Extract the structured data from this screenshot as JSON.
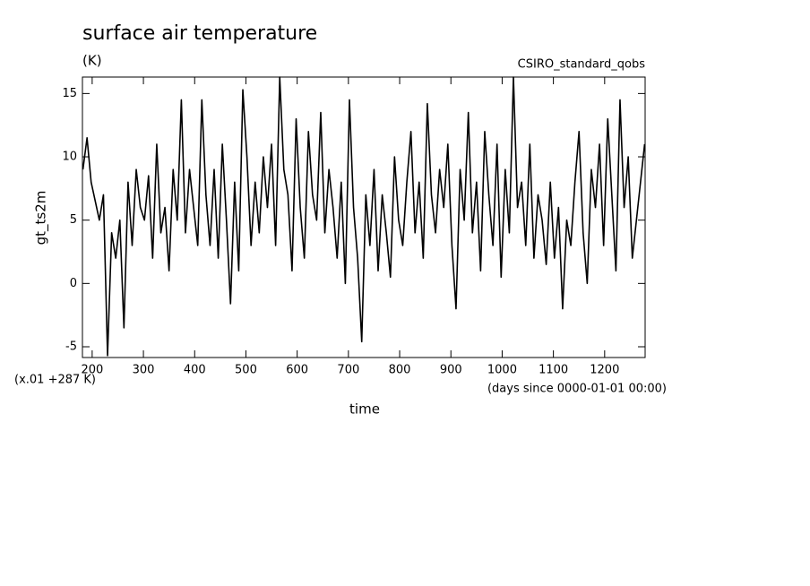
{
  "chart_data": {
    "type": "line",
    "title": "surface air temperature",
    "subtitle": "(K)",
    "dataset": "CSIRO_standard_qobs",
    "y_label": "gt_ts2m",
    "x_label": "time",
    "y_scale_note": "(x.01 +287 K)",
    "x_units": "(days since 0000-01-01 00:00)",
    "xlim": [
      181,
      1279
    ],
    "ylim": [
      -5.85,
      16.3
    ],
    "xticks": [
      200,
      300,
      400,
      500,
      600,
      700,
      800,
      900,
      1000,
      1100,
      1200
    ],
    "yticks": [
      -5,
      0,
      5,
      10,
      15
    ],
    "grid": false,
    "x": [
      182,
      190,
      198,
      206,
      214,
      222,
      230,
      238,
      246,
      254,
      262,
      270,
      278,
      286,
      294,
      302,
      310,
      318,
      326,
      334,
      342,
      350,
      358,
      366,
      374,
      382,
      390,
      398,
      406,
      414,
      422,
      430,
      438,
      446,
      454,
      462,
      470,
      478,
      486,
      494,
      502,
      510,
      518,
      526,
      534,
      542,
      550,
      558,
      566,
      574,
      582,
      590,
      598,
      606,
      614,
      622,
      630,
      638,
      646,
      654,
      662,
      670,
      678,
      686,
      694,
      702,
      710,
      718,
      726,
      734,
      742,
      750,
      758,
      766,
      774,
      782,
      790,
      798,
      806,
      814,
      822,
      830,
      838,
      846,
      854,
      862,
      870,
      878,
      886,
      894,
      902,
      910,
      918,
      926,
      934,
      942,
      950,
      958,
      966,
      974,
      982,
      990,
      998,
      1006,
      1014,
      1022,
      1030,
      1038,
      1046,
      1054,
      1062,
      1070,
      1078,
      1086,
      1094,
      1102,
      1110,
      1118,
      1126,
      1134,
      1142,
      1150,
      1158,
      1166,
      1174,
      1182,
      1190,
      1198,
      1206,
      1214,
      1222,
      1230,
      1238,
      1246,
      1254,
      1262,
      1270,
      1278
    ],
    "series": [
      {
        "color": "#000000",
        "values": [
          9,
          11.5,
          8,
          6.5,
          5,
          7,
          -5.7,
          4,
          2,
          5,
          -3.5,
          8,
          3,
          9,
          6,
          5,
          8.5,
          2,
          11,
          4,
          6,
          1,
          9,
          5,
          14.5,
          4,
          9,
          6,
          3,
          14.5,
          7,
          3,
          9,
          2,
          11,
          5,
          -1.6,
          8,
          1,
          15.3,
          10,
          3,
          8,
          4,
          10,
          6,
          11,
          3,
          16.3,
          9,
          7,
          1,
          13,
          6,
          2,
          12,
          7,
          5,
          13.5,
          4,
          9,
          6,
          2,
          8,
          0,
          14.5,
          6,
          2,
          -4.6,
          7,
          3,
          9,
          1,
          7,
          4,
          0.5,
          10,
          5,
          3,
          8,
          12,
          4,
          8,
          2,
          14.2,
          7,
          4,
          9,
          6,
          11,
          3,
          -2,
          9,
          5,
          13.5,
          4,
          8,
          1,
          12,
          7,
          3,
          11,
          0.5,
          9,
          4,
          16.3,
          6,
          8,
          3,
          11,
          2,
          7,
          5,
          1.5,
          8,
          2,
          6,
          -2,
          5,
          3,
          8,
          12,
          4,
          0,
          9,
          6,
          11,
          3,
          13,
          7,
          1,
          14.5,
          6,
          10,
          2,
          5,
          8,
          11
        ]
      }
    ]
  }
}
